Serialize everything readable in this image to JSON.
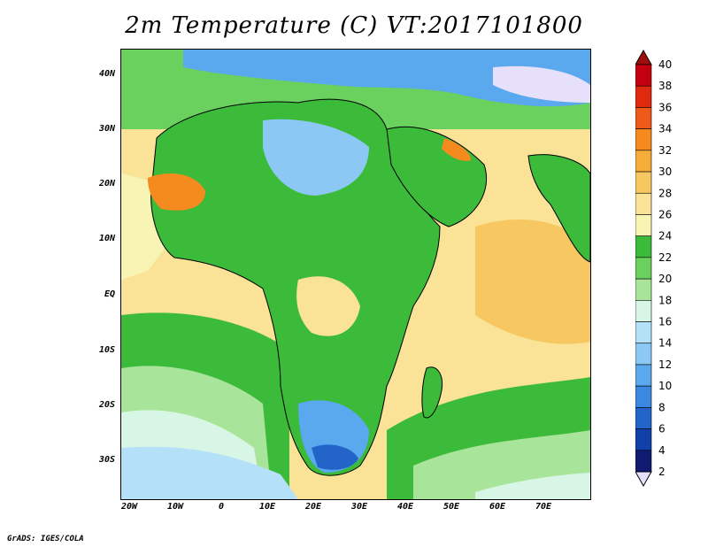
{
  "title": "2m Temperature (C) VT:2017101800",
  "footer": "GrADS: IGES/COLA",
  "map": {
    "lat_labels": [
      "40N",
      "30N",
      "20N",
      "10N",
      "EQ",
      "10S",
      "20S",
      "30S"
    ],
    "lat_values": [
      40,
      30,
      20,
      10,
      0,
      -10,
      -20,
      -30
    ],
    "lon_labels": [
      "20W",
      "10W",
      "0",
      "10E",
      "20E",
      "30E",
      "40E",
      "50E",
      "60E",
      "70E"
    ],
    "lon_values": [
      -20,
      -10,
      0,
      10,
      20,
      30,
      40,
      50,
      60,
      70
    ],
    "lon_range": [
      -22,
      80
    ],
    "lat_range": [
      -37,
      45
    ]
  },
  "colorbar": {
    "labels": [
      "40",
      "38",
      "36",
      "34",
      "32",
      "30",
      "28",
      "26",
      "24",
      "22",
      "20",
      "18",
      "16",
      "14",
      "12",
      "10",
      "8",
      "6",
      "4",
      "2"
    ],
    "colors": [
      "#8b0000",
      "#c40010",
      "#e02a10",
      "#ef5a1a",
      "#f58a1e",
      "#f7ad3a",
      "#f7c862",
      "#fae296",
      "#f8f4b4",
      "#3cba3a",
      "#6ad05e",
      "#a8e49a",
      "#d8f6e6",
      "#b4e0f8",
      "#8cc8f4",
      "#5aa8ee",
      "#3a88e0",
      "#2264c8",
      "#1040a8",
      "#101a70",
      "#e6e0fb"
    ],
    "overflow_colors": {
      "top": "#a00d0d",
      "bottom": "#e6e0fb"
    }
  }
}
